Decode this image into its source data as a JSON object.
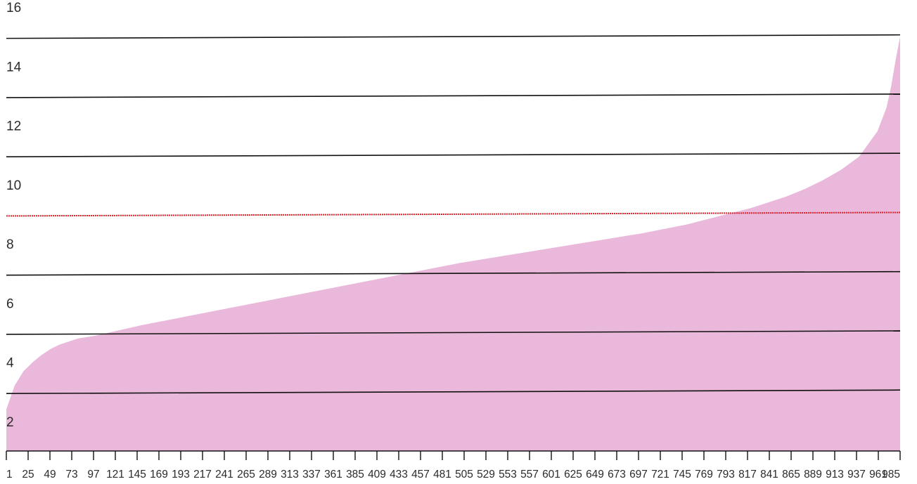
{
  "chart_data": {
    "type": "area",
    "title": "",
    "xlabel": "",
    "ylabel": "",
    "x_ticks": [
      1,
      25,
      49,
      73,
      97,
      121,
      145,
      169,
      193,
      217,
      241,
      265,
      289,
      313,
      337,
      361,
      385,
      409,
      433,
      457,
      481,
      505,
      529,
      553,
      557,
      601,
      625,
      649,
      673,
      697,
      721,
      745,
      769,
      793,
      817,
      841,
      865,
      889,
      913,
      937,
      961,
      985
    ],
    "y_ticks": [
      2,
      4,
      6,
      8,
      10,
      12,
      14,
      16
    ],
    "xlim": [
      1,
      985
    ],
    "ylim": [
      1,
      16
    ],
    "grid": "horizontal",
    "reference_line": {
      "y": 9,
      "color": "#e0222a"
    },
    "series_color": "#e9b8da",
    "x": [
      1,
      10,
      20,
      30,
      40,
      50,
      60,
      70,
      80,
      90,
      100,
      150,
      200,
      250,
      300,
      350,
      400,
      450,
      500,
      550,
      600,
      650,
      700,
      750,
      800,
      820,
      840,
      860,
      880,
      900,
      920,
      940,
      960,
      970,
      975,
      980,
      985
    ],
    "values": [
      2.4,
      3.2,
      3.7,
      4.0,
      4.25,
      4.45,
      4.6,
      4.7,
      4.8,
      4.85,
      4.9,
      5.25,
      5.55,
      5.85,
      6.15,
      6.45,
      6.75,
      7.05,
      7.35,
      7.6,
      7.85,
      8.1,
      8.35,
      8.65,
      9.05,
      9.2,
      9.4,
      9.6,
      9.85,
      10.15,
      10.5,
      10.95,
      11.8,
      12.6,
      13.3,
      14.2,
      15.0
    ]
  }
}
